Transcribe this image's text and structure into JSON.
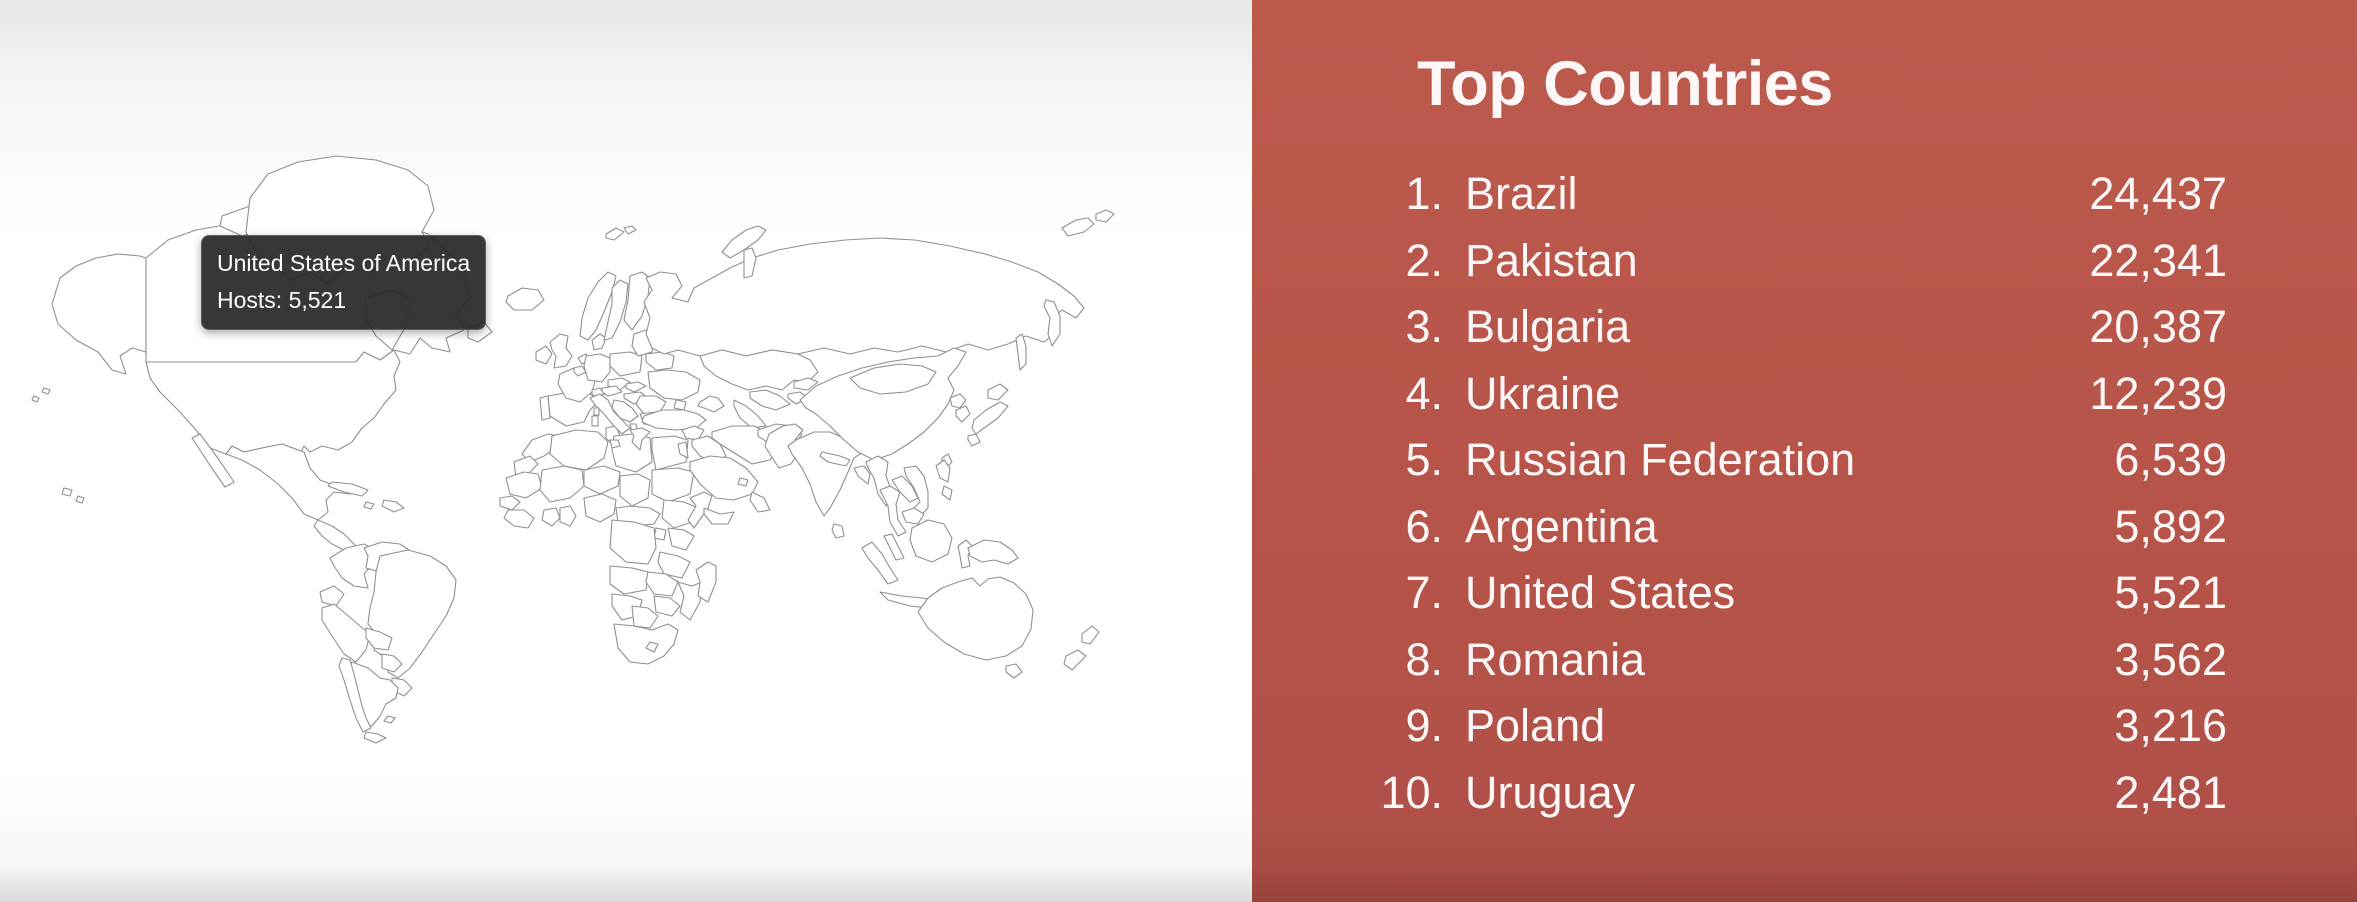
{
  "panel": {
    "title": "Top Countries",
    "items": [
      {
        "rank": "1.",
        "name": "Brazil",
        "value": "24,437"
      },
      {
        "rank": "2.",
        "name": "Pakistan",
        "value": "22,341"
      },
      {
        "rank": "3.",
        "name": "Bulgaria",
        "value": "20,387"
      },
      {
        "rank": "4.",
        "name": "Ukraine",
        "value": "12,239"
      },
      {
        "rank": "5.",
        "name": "Russian Federation",
        "value": "6,539"
      },
      {
        "rank": "6.",
        "name": "Argentina",
        "value": "5,892"
      },
      {
        "rank": "7.",
        "name": "United States",
        "value": "5,521"
      },
      {
        "rank": "8.",
        "name": "Romania",
        "value": "3,562"
      },
      {
        "rank": "9.",
        "name": "Poland",
        "value": "3,216"
      },
      {
        "rank": "10.",
        "name": "Uruguay",
        "value": "2,481"
      }
    ],
    "background": "#b75449",
    "text_color": "#ffffff"
  },
  "tooltip": {
    "country": "United States of America",
    "hosts": "Hosts: 5,521"
  },
  "map": {
    "stroke": "#8f8f8f",
    "palette": {
      "t0": "#ffffff",
      "t1": "#f8ddd7",
      "t2": "#f0c7be",
      "t3": "#e3a99e",
      "t4": "#d68d80",
      "t4r": "#cb7668",
      "t5": "#c5685a",
      "t6": "#c05143"
    },
    "countries": {
      "alaska": "t4",
      "usa": "t4",
      "hawaii": "t4",
      "canada": "t3",
      "canada-islands": "t3",
      "newfoundland": "t3",
      "greenland": "t0",
      "iceland": "t0",
      "mexico": "t2",
      "baja": "t2",
      "central-america": "t2",
      "panama": "t0",
      "cuba": "t0",
      "hispaniola": "t0",
      "jamaica": "t0",
      "colombia": "t3",
      "venezuela": "t3",
      "guyanas": "t0",
      "ecuador": "t3",
      "peru": "t2",
      "brazil": "t6",
      "bolivia": "t2",
      "paraguay": "t1",
      "uruguay": "t4",
      "argentina": "t5",
      "chile": "t2",
      "tierra-del-fuego": "t2",
      "falklands": "t0",
      "morocco": "t0",
      "western-sahara": "t0",
      "mauritania": "t2",
      "senegal": "t2",
      "guinea": "t0",
      "mali": "t0",
      "algeria": "t0",
      "tunisia": "t1",
      "libya": "t1",
      "egypt": "t2",
      "niger": "t0",
      "chad": "t0",
      "sudan": "t0",
      "nigeria": "t2",
      "ghana": "t2",
      "ivory-coast": "t0",
      "cameroon": "t0",
      "ethiopia": "t0",
      "somalia": "t0",
      "kenya": "t3",
      "uganda": "t0",
      "drc": "t0",
      "tanzania": "t2",
      "angola": "t0",
      "zambia": "t2",
      "zimbabwe": "t2",
      "mozambique": "t2",
      "namibia": "t0",
      "botswana": "t0",
      "south-africa": "t4",
      "lesotho": "t0",
      "madagascar": "t2",
      "portugal": "t3",
      "spain": "t4",
      "france": "t3",
      "uk": "t4",
      "ireland": "t3",
      "netherlands": "t3",
      "belgium": "t3",
      "germany": "t4",
      "denmark": "t1",
      "norway": "t1",
      "sweden": "t1",
      "finland": "t0",
      "svalbard": "t1",
      "poland": "t5",
      "czech": "t4",
      "slovakia": "t4",
      "hungary": "t4",
      "austria": "t3",
      "switzerland": "t2",
      "italy": "t4",
      "sicily": "t4",
      "sardinia": "t4",
      "corsica": "t3",
      "balkans": "t4",
      "albania": "t2",
      "romania": "t5",
      "moldova": "t4",
      "bulgaria": "t6",
      "greece": "t2",
      "baltics": "t3",
      "belarus": "t3",
      "ukraine": "t6",
      "crimea": "t6",
      "turkey": "t2",
      "caucasus": "t3",
      "russia": "t4r",
      "novaya-zemlya": "t4r",
      "arctic-islands-ru": "t4r",
      "arctic-islands-ru2": "t4r",
      "kamchatka": "t4r",
      "sakhalin": "t4r",
      "kazakhstan": "t3",
      "uzbekistan": "t3",
      "turkmenistan": "t3",
      "kyrgyzstan": "t3",
      "tajikistan": "t3",
      "syria": "t1",
      "iraq": "t0",
      "israel-jordan": "t0",
      "saudi-arabia": "t0",
      "yemen": "t1",
      "oman": "t2",
      "gulf-states": "t2",
      "iran": "t3",
      "afghanistan": "t3",
      "pakistan": "t6",
      "india": "t4",
      "nepal": "t0",
      "bangladesh": "t3",
      "sri-lanka": "t0",
      "myanmar": "t2",
      "thailand": "t2",
      "laos": "t3",
      "vietnam": "t4",
      "cambodia": "t3",
      "malaysia": "t3",
      "sumatra": "t3",
      "java": "t3",
      "borneo": "t3",
      "sulawesi": "t2",
      "new-guinea": "t2",
      "philippines": "t2",
      "philippines2": "t2",
      "taiwan": "t2",
      "china": "t2",
      "mongolia": "t1",
      "north-korea": "t0",
      "south-korea": "t3",
      "hokkaido": "t3",
      "honshu": "t3",
      "kyushu": "t3",
      "australia": "t2",
      "tasmania": "t2",
      "nz-north": "t1",
      "nz-south": "t1"
    }
  },
  "chart_data": {
    "type": "choropleth_map",
    "metric": "Hosts",
    "region": "world",
    "title": "Top Countries",
    "top_countries": [
      {
        "rank": 1,
        "name": "Brazil",
        "hosts": 24437
      },
      {
        "rank": 2,
        "name": "Pakistan",
        "hosts": 22341
      },
      {
        "rank": 3,
        "name": "Bulgaria",
        "hosts": 20387
      },
      {
        "rank": 4,
        "name": "Ukraine",
        "hosts": 12239
      },
      {
        "rank": 5,
        "name": "Russian Federation",
        "hosts": 6539
      },
      {
        "rank": 6,
        "name": "Argentina",
        "hosts": 5892
      },
      {
        "rank": 7,
        "name": "United States",
        "hosts": 5521
      },
      {
        "rank": 8,
        "name": "Romania",
        "hosts": 3562
      },
      {
        "rank": 9,
        "name": "Poland",
        "hosts": 3216
      },
      {
        "rank": 10,
        "name": "Uruguay",
        "hosts": 2481
      }
    ],
    "tooltip": {
      "country": "United States of America",
      "hosts": 5521
    },
    "legend_position": "none"
  }
}
